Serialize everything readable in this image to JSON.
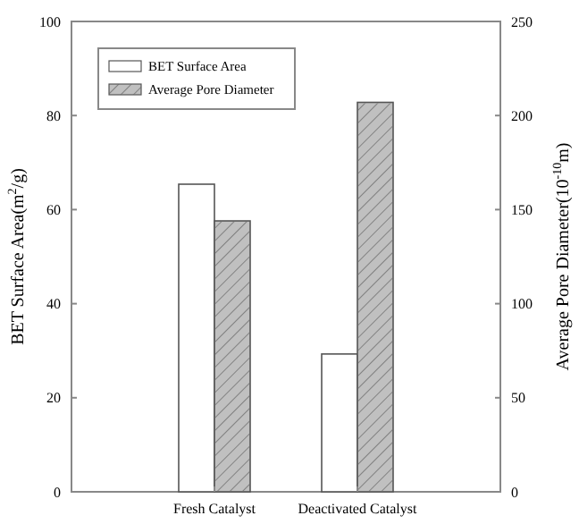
{
  "chart_data": {
    "type": "bar",
    "categories": [
      "Fresh Catalyst",
      "Deactivated Catalyst"
    ],
    "series": [
      {
        "name": "BET Surface Area",
        "color": "#ffffff",
        "values": [
          65.4,
          29.3
        ]
      },
      {
        "name": "Average Pore Diameter",
        "color": "#c0c0c0",
        "values": [
          144,
          207
        ],
        "axis": "y2"
      }
    ],
    "ylabel": "BET Surface Area(m$^{2}$/g)",
    "y2label": "Average Pore Diameter(10$^{-10}$m)",
    "ylim": [
      0,
      100
    ],
    "yticks": [
      0,
      20,
      40,
      60,
      80,
      100
    ],
    "y2lim": [
      0,
      250
    ],
    "y2ticks": [
      0,
      50,
      100,
      150,
      200,
      250
    ],
    "grid": false,
    "legend": "top left"
  }
}
